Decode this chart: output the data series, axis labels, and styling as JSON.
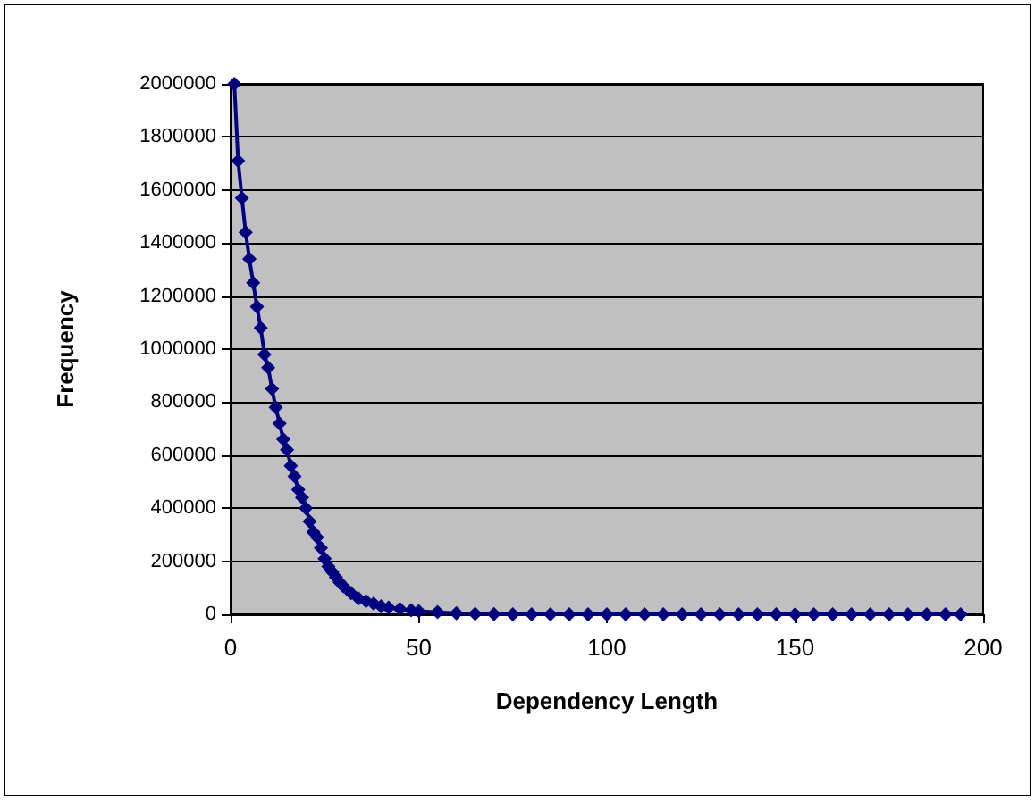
{
  "chart_data": {
    "type": "line",
    "xlabel": "Dependency Length",
    "ylabel": "Frequency",
    "x": [
      1,
      2,
      3,
      4,
      5,
      6,
      7,
      8,
      9,
      10,
      11,
      12,
      13,
      14,
      15,
      16,
      17,
      18,
      19,
      20,
      21,
      22,
      23,
      24,
      25,
      26,
      27,
      28,
      29,
      30,
      32,
      34,
      36,
      38,
      40,
      42,
      45,
      48,
      50,
      55,
      60,
      65,
      70,
      75,
      80,
      85,
      90,
      95,
      100,
      105,
      110,
      115,
      120,
      125,
      130,
      135,
      140,
      145,
      150,
      155,
      160,
      165,
      170,
      175,
      180,
      185,
      190,
      194
    ],
    "series": [
      {
        "color": "#000080",
        "values": [
          2000000,
          1710000,
          1570000,
          1440000,
          1340000,
          1250000,
          1160000,
          1080000,
          980000,
          930000,
          850000,
          780000,
          720000,
          660000,
          620000,
          560000,
          520000,
          470000,
          440000,
          400000,
          350000,
          310000,
          290000,
          250000,
          210000,
          180000,
          160000,
          140000,
          120000,
          105000,
          80000,
          60000,
          50000,
          40000,
          30000,
          25000,
          20000,
          15000,
          12000,
          8000,
          4000,
          2000,
          1000,
          0,
          0,
          0,
          0,
          0,
          0,
          0,
          0,
          0,
          0,
          0,
          0,
          0,
          0,
          0,
          0,
          0,
          0,
          0,
          0,
          0,
          0,
          0,
          0,
          0
        ]
      }
    ],
    "xlim": [
      0,
      200
    ],
    "xticks": [
      0,
      50,
      100,
      150,
      200
    ],
    "ylim": [
      0,
      2000000
    ],
    "yticks": [
      0,
      200000,
      400000,
      600000,
      800000,
      1000000,
      1200000,
      1400000,
      1600000,
      1800000,
      2000000
    ],
    "grid": "y",
    "marker": "diamond",
    "line_style": "solid"
  }
}
